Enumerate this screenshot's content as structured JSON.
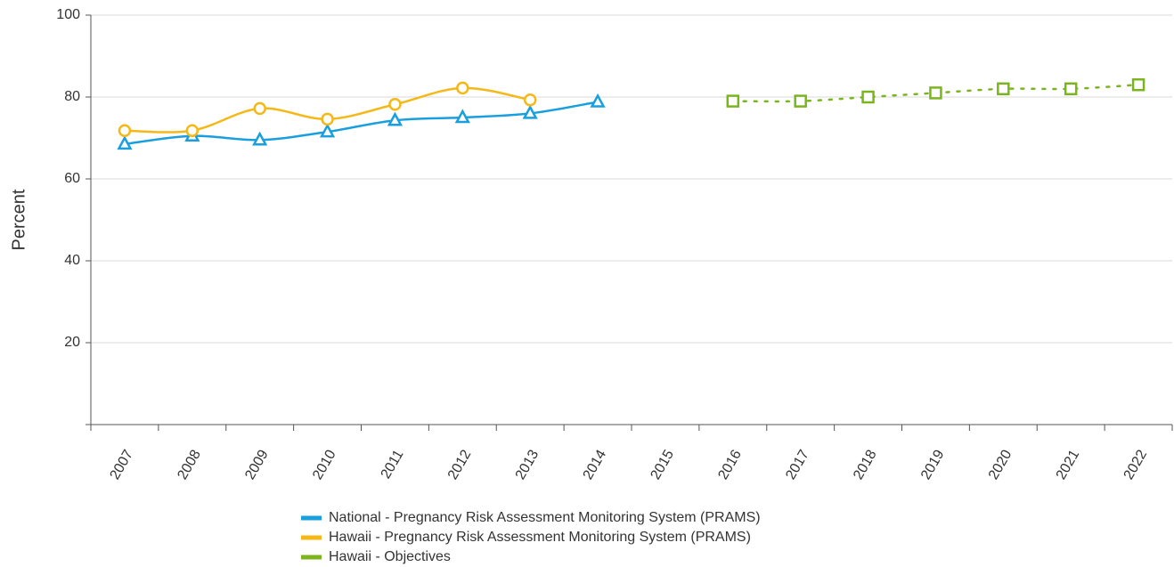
{
  "chart_data": {
    "type": "line",
    "y_label": "Percent",
    "categories": [
      "2007",
      "2008",
      "2009",
      "2010",
      "2011",
      "2012",
      "2013",
      "2014",
      "2015",
      "2016",
      "2017",
      "2018",
      "2019",
      "2020",
      "2021",
      "2022"
    ],
    "series": [
      {
        "name": "National - Pregnancy Risk Assessment Monitoring System (PRAMS)",
        "color": "#1a9fde",
        "marker": "triangle",
        "dash": false,
        "values": [
          68.5,
          70.5,
          69.5,
          71.5,
          74.3,
          75,
          76,
          78.8,
          null,
          null,
          null,
          null,
          null,
          null,
          null,
          null
        ]
      },
      {
        "name": "Hawaii - Pregnancy Risk Assessment Monitoring System (PRAMS)",
        "color": "#f5b817",
        "marker": "circle",
        "dash": false,
        "values": [
          71.8,
          71.8,
          77.2,
          74.6,
          78.2,
          82.2,
          79.3,
          null,
          null,
          null,
          null,
          null,
          null,
          null,
          null,
          null
        ]
      },
      {
        "name": "Hawaii - Objectives",
        "color": "#7ab51d",
        "marker": "square",
        "dash": true,
        "values": [
          null,
          null,
          null,
          null,
          null,
          null,
          null,
          null,
          null,
          79,
          79,
          80,
          81,
          82,
          82,
          83
        ]
      }
    ],
    "ylim": [
      0,
      100
    ],
    "yticks": [
      20,
      40,
      60,
      80,
      100
    ],
    "grid": true
  }
}
